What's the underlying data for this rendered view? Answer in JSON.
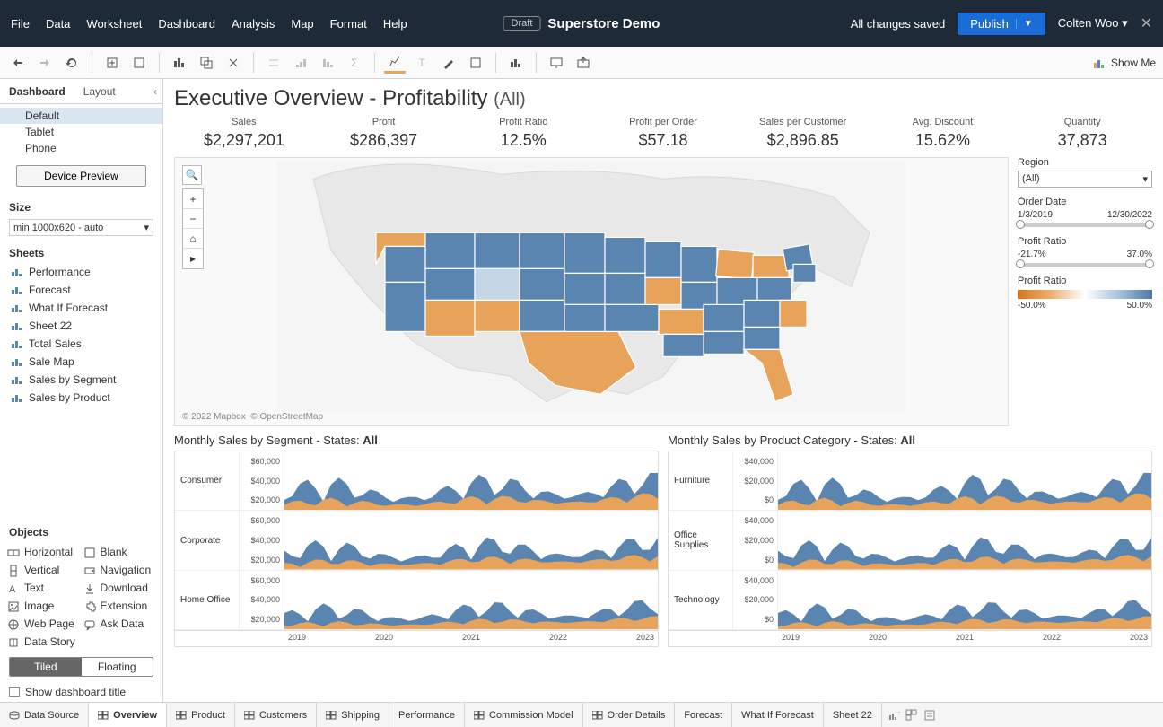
{
  "topbar": {
    "menus": [
      "File",
      "Data",
      "Worksheet",
      "Dashboard",
      "Analysis",
      "Map",
      "Format",
      "Help"
    ],
    "draft": "Draft",
    "title": "Superstore Demo",
    "saved": "All changes saved",
    "publish": "Publish",
    "user": "Colten Woo"
  },
  "toolbar": {
    "showme": "Show Me"
  },
  "leftpanel": {
    "tabs": {
      "dashboard": "Dashboard",
      "layout": "Layout"
    },
    "devices": [
      "Default",
      "Tablet",
      "Phone"
    ],
    "preview_btn": "Device Preview",
    "size_label": "Size",
    "size_value": "min 1000x620 - auto",
    "sheets_label": "Sheets",
    "sheets": [
      "Performance",
      "Forecast",
      "What If Forecast",
      "Sheet 22",
      "Total Sales",
      "Sale Map",
      "Sales by Segment",
      "Sales by Product"
    ],
    "objects_label": "Objects",
    "objects": [
      "Horizontal",
      "Blank",
      "Vertical",
      "Navigation",
      "Text",
      "Download",
      "Image",
      "Extension",
      "Web Page",
      "Ask Data",
      "Data Story"
    ],
    "tiled": "Tiled",
    "floating": "Floating",
    "show_title": "Show dashboard title"
  },
  "dashboard": {
    "title_main": "Executive Overview - Profitability ",
    "title_sub": "(All)",
    "kpis": [
      {
        "label": "Sales",
        "value": "$2,297,201"
      },
      {
        "label": "Profit",
        "value": "$286,397"
      },
      {
        "label": "Profit Ratio",
        "value": "12.5%"
      },
      {
        "label": "Profit per Order",
        "value": "$57.18"
      },
      {
        "label": "Sales per Customer",
        "value": "$2,896.85"
      },
      {
        "label": "Avg. Discount",
        "value": "15.62%"
      },
      {
        "label": "Quantity",
        "value": "37,873"
      }
    ],
    "map": {
      "credits1": "© 2022 Mapbox",
      "credits2": "© OpenStreetMap",
      "state_blue": "#5a85b0",
      "state_orange": "#e8a35a",
      "state_lightblue": "#a8c4dc",
      "land": "#e8e8e8"
    },
    "filters": {
      "region_label": "Region",
      "region_value": "(All)",
      "date_label": "Order Date",
      "date_min": "1/3/2019",
      "date_max": "12/30/2022",
      "ratio_label": "Profit Ratio",
      "ratio_min": "-21.7%",
      "ratio_max": "37.0%",
      "legend_label": "Profit Ratio",
      "legend_min": "-50.0%",
      "legend_max": "50.0%"
    },
    "segment_chart": {
      "title_a": "Monthly Sales by Segment - States: ",
      "title_b": "All",
      "rows": [
        "Consumer",
        "Corporate",
        "Home Office"
      ],
      "ylabels": [
        "$60,000",
        "$40,000",
        "$20,000"
      ],
      "xlabels": [
        "2019",
        "2020",
        "2021",
        "2022",
        "2023"
      ],
      "series_color_main": "#5a85b0",
      "series_color_accent": "#e8a35a"
    },
    "product_chart": {
      "title_a": "Monthly Sales by Product Category - States: ",
      "title_b": "All",
      "rows": [
        "Furniture",
        "Office Supplies",
        "Technology"
      ],
      "ylabels": [
        "$40,000",
        "$20,000",
        "$0"
      ],
      "xlabels": [
        "2019",
        "2020",
        "2021",
        "2022",
        "2023"
      ]
    }
  },
  "bottom_tabs": {
    "datasource": "Data Source",
    "tabs": [
      "Overview",
      "Product",
      "Customers",
      "Shipping",
      "Performance",
      "Commission Model",
      "Order Details",
      "Forecast",
      "What If Forecast",
      "Sheet 22"
    ]
  }
}
